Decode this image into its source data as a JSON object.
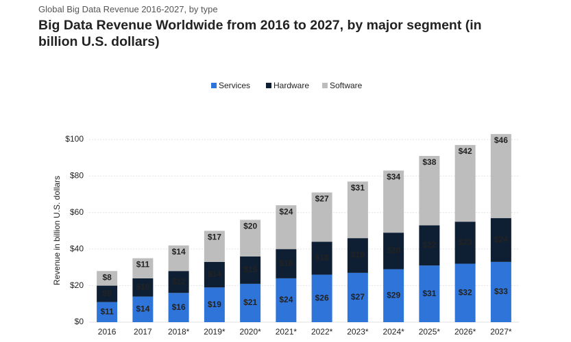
{
  "chart_data": {
    "type": "stacked_bar",
    "subtitle": "Global Big Data Revenue 2016-2027, by type",
    "title": "Big Data Revenue Worldwide from 2016 to 2027, by major segment (in billion U.S. dollars)",
    "y_label": "Revenue in billion U.S. dollars",
    "categories": [
      "2016",
      "2017",
      "2018*",
      "2019*",
      "2020*",
      "2021*",
      "2022*",
      "2023*",
      "2024*",
      "2025*",
      "2026*",
      "2027*"
    ],
    "series": [
      {
        "name": "Services",
        "color": "#2f74d9",
        "label_color": "#ffffff",
        "values": [
          11,
          14,
          16,
          19,
          21,
          24,
          26,
          27,
          29,
          31,
          32,
          33
        ],
        "value_labels": [
          "$11",
          "$14",
          "$16",
          "$19",
          "$21",
          "$24",
          "$26",
          "$27",
          "$29",
          "$31",
          "$32",
          "$33"
        ]
      },
      {
        "name": "Hardware",
        "color": "#0f1f33",
        "label_color": "#ffffff",
        "values": [
          9,
          10,
          12,
          14,
          15,
          16,
          18,
          19,
          20,
          22,
          23,
          24
        ],
        "value_labels": [
          "$9",
          "$10",
          "$12",
          "$14",
          "$15",
          "$16",
          "$18",
          "$19",
          "$20",
          "$22",
          "$23",
          "$24"
        ]
      },
      {
        "name": "Software",
        "color": "#bdbdbd",
        "label_color": "#111111",
        "values": [
          8,
          11,
          14,
          17,
          20,
          24,
          27,
          31,
          34,
          38,
          42,
          46
        ],
        "value_labels": [
          "$8",
          "$11",
          "$14",
          "$17",
          "$20",
          "$24",
          "$27",
          "$31",
          "$34",
          "$38",
          "$42",
          "$46"
        ]
      }
    ],
    "ylim": [
      0,
      105
    ],
    "yticks": [
      {
        "value": 0,
        "label": "$0"
      },
      {
        "value": 20,
        "label": "$20"
      },
      {
        "value": 40,
        "label": "$40"
      },
      {
        "value": 60,
        "label": "$60"
      },
      {
        "value": 80,
        "label": "$80"
      },
      {
        "value": 100,
        "label": "$100"
      }
    ],
    "grid": true,
    "legend": "top"
  }
}
